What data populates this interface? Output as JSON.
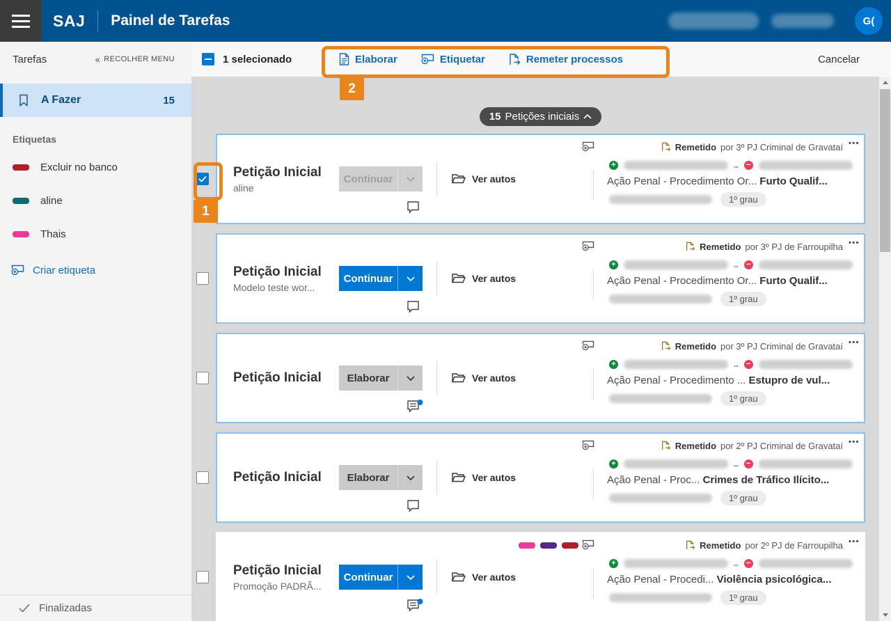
{
  "header": {
    "logo": "SAJ",
    "title": "Painel de Tarefas",
    "avatar_initials": "G("
  },
  "icons": {
    "dots_menu": "•••",
    "collapse_chevrons": "«"
  },
  "toolbar": {
    "selected_label": "1 selecionado",
    "actions": [
      {
        "label": "Elaborar",
        "icon": "document-icon"
      },
      {
        "label": "Etiquetar",
        "icon": "tag-add-icon"
      },
      {
        "label": "Remeter processos",
        "icon": "send-document-icon"
      }
    ],
    "cancel_label": "Cancelar"
  },
  "sidebar": {
    "title": "Tarefas",
    "collapse_label": "RECOLHER MENU",
    "todo": {
      "label": "A Fazer",
      "count": "15"
    },
    "tags_header": "Etiquetas",
    "tags": [
      {
        "label": "Excluir no banco",
        "color": "#b11e2a"
      },
      {
        "label": "aline",
        "color": "#0e6b6e"
      },
      {
        "label": "Thais",
        "color": "#ef3a9b"
      }
    ],
    "create_tag_label": "Criar etiqueta",
    "finished_label": "Finalizadas"
  },
  "group_header": {
    "count": "15",
    "label": "Petições iniciais"
  },
  "annotations": {
    "one": "1",
    "two": "2"
  },
  "cards": [
    {
      "title": "Petição Inicial",
      "subtitle": "aline",
      "action": "Continuar",
      "action_style": "disabled",
      "view_label": "Ver autos",
      "checked": true,
      "selected_border": true,
      "comment_badge": false,
      "chips": [],
      "status_label": "Remetido",
      "status_by": "por 3º PJ Criminal de Gravataí",
      "truncation_dots": "..",
      "class_prefix": "Ação Penal - Procedimento Or... ",
      "class_highlight": "Furto Qualif...",
      "degree": "1º grau"
    },
    {
      "title": "Petição Inicial",
      "subtitle": "Modelo teste wor...",
      "action": "Continuar",
      "action_style": "primary",
      "view_label": "Ver autos",
      "checked": false,
      "selected_border": true,
      "comment_badge": false,
      "chips": [],
      "status_label": "Remetido",
      "status_by": "por 3º PJ de Farroupilha",
      "truncation_dots": "..",
      "class_prefix": "Ação Penal - Procedimento Or... ",
      "class_highlight": "Furto Qualif...",
      "degree": "1º grau"
    },
    {
      "title": "Petição Inicial",
      "subtitle": "",
      "action": "Elaborar",
      "action_style": "secondary",
      "view_label": "Ver autos",
      "checked": false,
      "selected_border": true,
      "comment_badge": true,
      "chips": [],
      "status_label": "Remetido",
      "status_by": "por 3º PJ Criminal de Gravataí",
      "truncation_dots": "..",
      "class_prefix": "Ação Penal - Procedimento ... ",
      "class_highlight": "Estupro de vul...",
      "degree": "1º grau"
    },
    {
      "title": "Petição Inicial",
      "subtitle": "",
      "action": "Elaborar",
      "action_style": "secondary",
      "view_label": "Ver autos",
      "checked": false,
      "selected_border": true,
      "comment_badge": false,
      "chips": [],
      "status_label": "Remetido",
      "status_by": "por 2º PJ Criminal de Gravataí",
      "truncation_dots": "..",
      "class_prefix": "Ação Penal - Proc... ",
      "class_highlight": "Crimes de Tráfico Ilícito...",
      "degree": "1º grau"
    },
    {
      "title": "Petição Inicial",
      "subtitle": "Promoção PADRÃ...",
      "action": "Continuar",
      "action_style": "primary",
      "view_label": "Ver autos",
      "checked": false,
      "selected_border": false,
      "comment_badge": true,
      "chips": [
        "#ef3a9b",
        "#53268a",
        "#b11e2a"
      ],
      "status_label": "Remetido",
      "status_by": "por 2º PJ de Farroupilha",
      "truncation_dots": "..",
      "class_prefix": "Ação Penal - Procedi... ",
      "class_highlight": "Violência psicológica...",
      "degree": "1º grau"
    }
  ],
  "colors": {
    "header_blue": "#00538f",
    "accent_blue": "#0078d4",
    "link_blue": "#0f6cbd",
    "annotation_orange": "#e8861c",
    "card_border_blue": "#8ac2ee",
    "added_green": "#10893e",
    "removed_red": "#e8405a",
    "remetido_gold": "#9b7b2a"
  }
}
